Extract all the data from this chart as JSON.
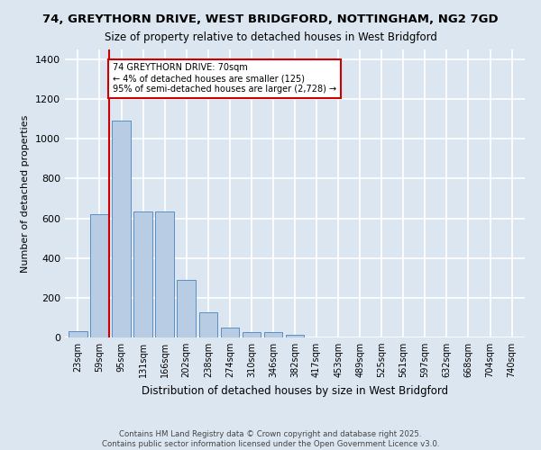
{
  "title_line1": "74, GREYTHORN DRIVE, WEST BRIDGFORD, NOTTINGHAM, NG2 7GD",
  "title_line2": "Size of property relative to detached houses in West Bridgford",
  "xlabel": "Distribution of detached houses by size in West Bridgford",
  "ylabel": "Number of detached properties",
  "bar_labels": [
    "23sqm",
    "59sqm",
    "95sqm",
    "131sqm",
    "166sqm",
    "202sqm",
    "238sqm",
    "274sqm",
    "310sqm",
    "346sqm",
    "382sqm",
    "417sqm",
    "453sqm",
    "489sqm",
    "525sqm",
    "561sqm",
    "597sqm",
    "632sqm",
    "668sqm",
    "704sqm",
    "740sqm"
  ],
  "bar_values": [
    30,
    620,
    1090,
    635,
    635,
    290,
    125,
    50,
    25,
    25,
    15,
    0,
    0,
    0,
    0,
    0,
    0,
    0,
    0,
    0,
    0
  ],
  "bar_color": "#b8cce4",
  "bar_edge_color": "#5a8fc4",
  "background_color": "#dce6f1",
  "grid_color": "#ffffff",
  "annotation_line1": "74 GREYTHORN DRIVE: 70sqm",
  "annotation_line2": "← 4% of detached houses are smaller (125)",
  "annotation_line3": "95% of semi-detached houses are larger (2,728) →",
  "annotation_box_color": "#ffffff",
  "annotation_border_color": "#cc0000",
  "vline_color": "#cc0000",
  "ylim": [
    0,
    1450
  ],
  "yticks": [
    0,
    200,
    400,
    600,
    800,
    1000,
    1200,
    1400
  ],
  "footer_line1": "Contains HM Land Registry data © Crown copyright and database right 2025.",
  "footer_line2": "Contains public sector information licensed under the Open Government Licence v3.0."
}
